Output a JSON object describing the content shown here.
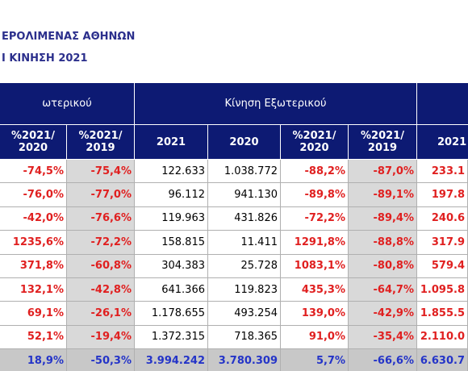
{
  "header": {
    "title": "ΕΡΟΛΙΜΕΝΑΣ ΑΘΗΝΩΝ",
    "subtitle": "Ι ΚΙΝΗΣΗ 2021"
  },
  "table": {
    "groups": [
      "ωτερικού",
      "Κίνηση Εξωτερικού"
    ],
    "columns": [
      "%2021/ 2020",
      "%2021/ 2019",
      "2021",
      "2020",
      "%2021/ 2020",
      "%2021/ 2019",
      "2021"
    ],
    "rows": [
      [
        "-74,5%",
        "-75,4%",
        "122.633",
        "1.038.772",
        "-88,2%",
        "-87,0%",
        "233.1"
      ],
      [
        "-76,0%",
        "-77,0%",
        "96.112",
        "941.130",
        "-89,8%",
        "-89,1%",
        "197.8"
      ],
      [
        "-42,0%",
        "-76,6%",
        "119.963",
        "431.826",
        "-72,2%",
        "-89,4%",
        "240.6"
      ],
      [
        "1235,6%",
        "-72,2%",
        "158.815",
        "11.411",
        "1291,8%",
        "-88,8%",
        "317.9"
      ],
      [
        "371,8%",
        "-60,8%",
        "304.383",
        "25.728",
        "1083,1%",
        "-80,8%",
        "579.4"
      ],
      [
        "132,1%",
        "-42,8%",
        "641.366",
        "119.823",
        "435,3%",
        "-64,7%",
        "1.095.8"
      ],
      [
        "69,1%",
        "-26,1%",
        "1.178.655",
        "493.254",
        "139,0%",
        "-42,9%",
        "1.855.5"
      ],
      [
        "52,1%",
        "-19,4%",
        "1.372.315",
        "718.365",
        "91,0%",
        "-35,4%",
        "2.110.0"
      ]
    ],
    "total": [
      "18,9%",
      "-50,3%",
      "3.994.242",
      "3.780.309",
      "5,7%",
      "-66,6%",
      "6.630.7"
    ]
  }
}
